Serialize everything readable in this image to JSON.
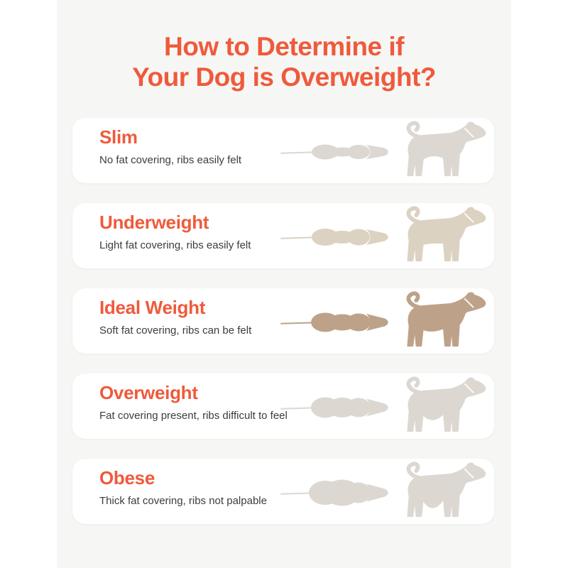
{
  "title": {
    "line1": "How to Determine if",
    "line2": "Your Dog is Overweight?"
  },
  "theme": {
    "accent_color": "#EF5A3B",
    "panel_background": "#F6F6F5",
    "card_background": "#FFFFFF",
    "body_text_color": "#3C3C3C"
  },
  "rows": [
    {
      "label": "Slim",
      "description": "No fat covering, ribs easily felt",
      "level": 1,
      "silhouette_color": "#DCD8D1"
    },
    {
      "label": "Underweight",
      "description": "Light fat covering, ribs easily felt",
      "level": 2,
      "silhouette_color": "#DBD2C2"
    },
    {
      "label": "Ideal Weight",
      "description": "Soft fat covering, ribs can be felt",
      "level": 3,
      "silhouette_color": "#BDA289"
    },
    {
      "label": "Overweight",
      "description": "Fat covering present, ribs difficult to feel",
      "level": 4,
      "silhouette_color": "#DCD8D1"
    },
    {
      "label": "Obese",
      "description": "Thick fat covering, ribs not palpable",
      "level": 5,
      "silhouette_color": "#DCD8D1"
    }
  ]
}
